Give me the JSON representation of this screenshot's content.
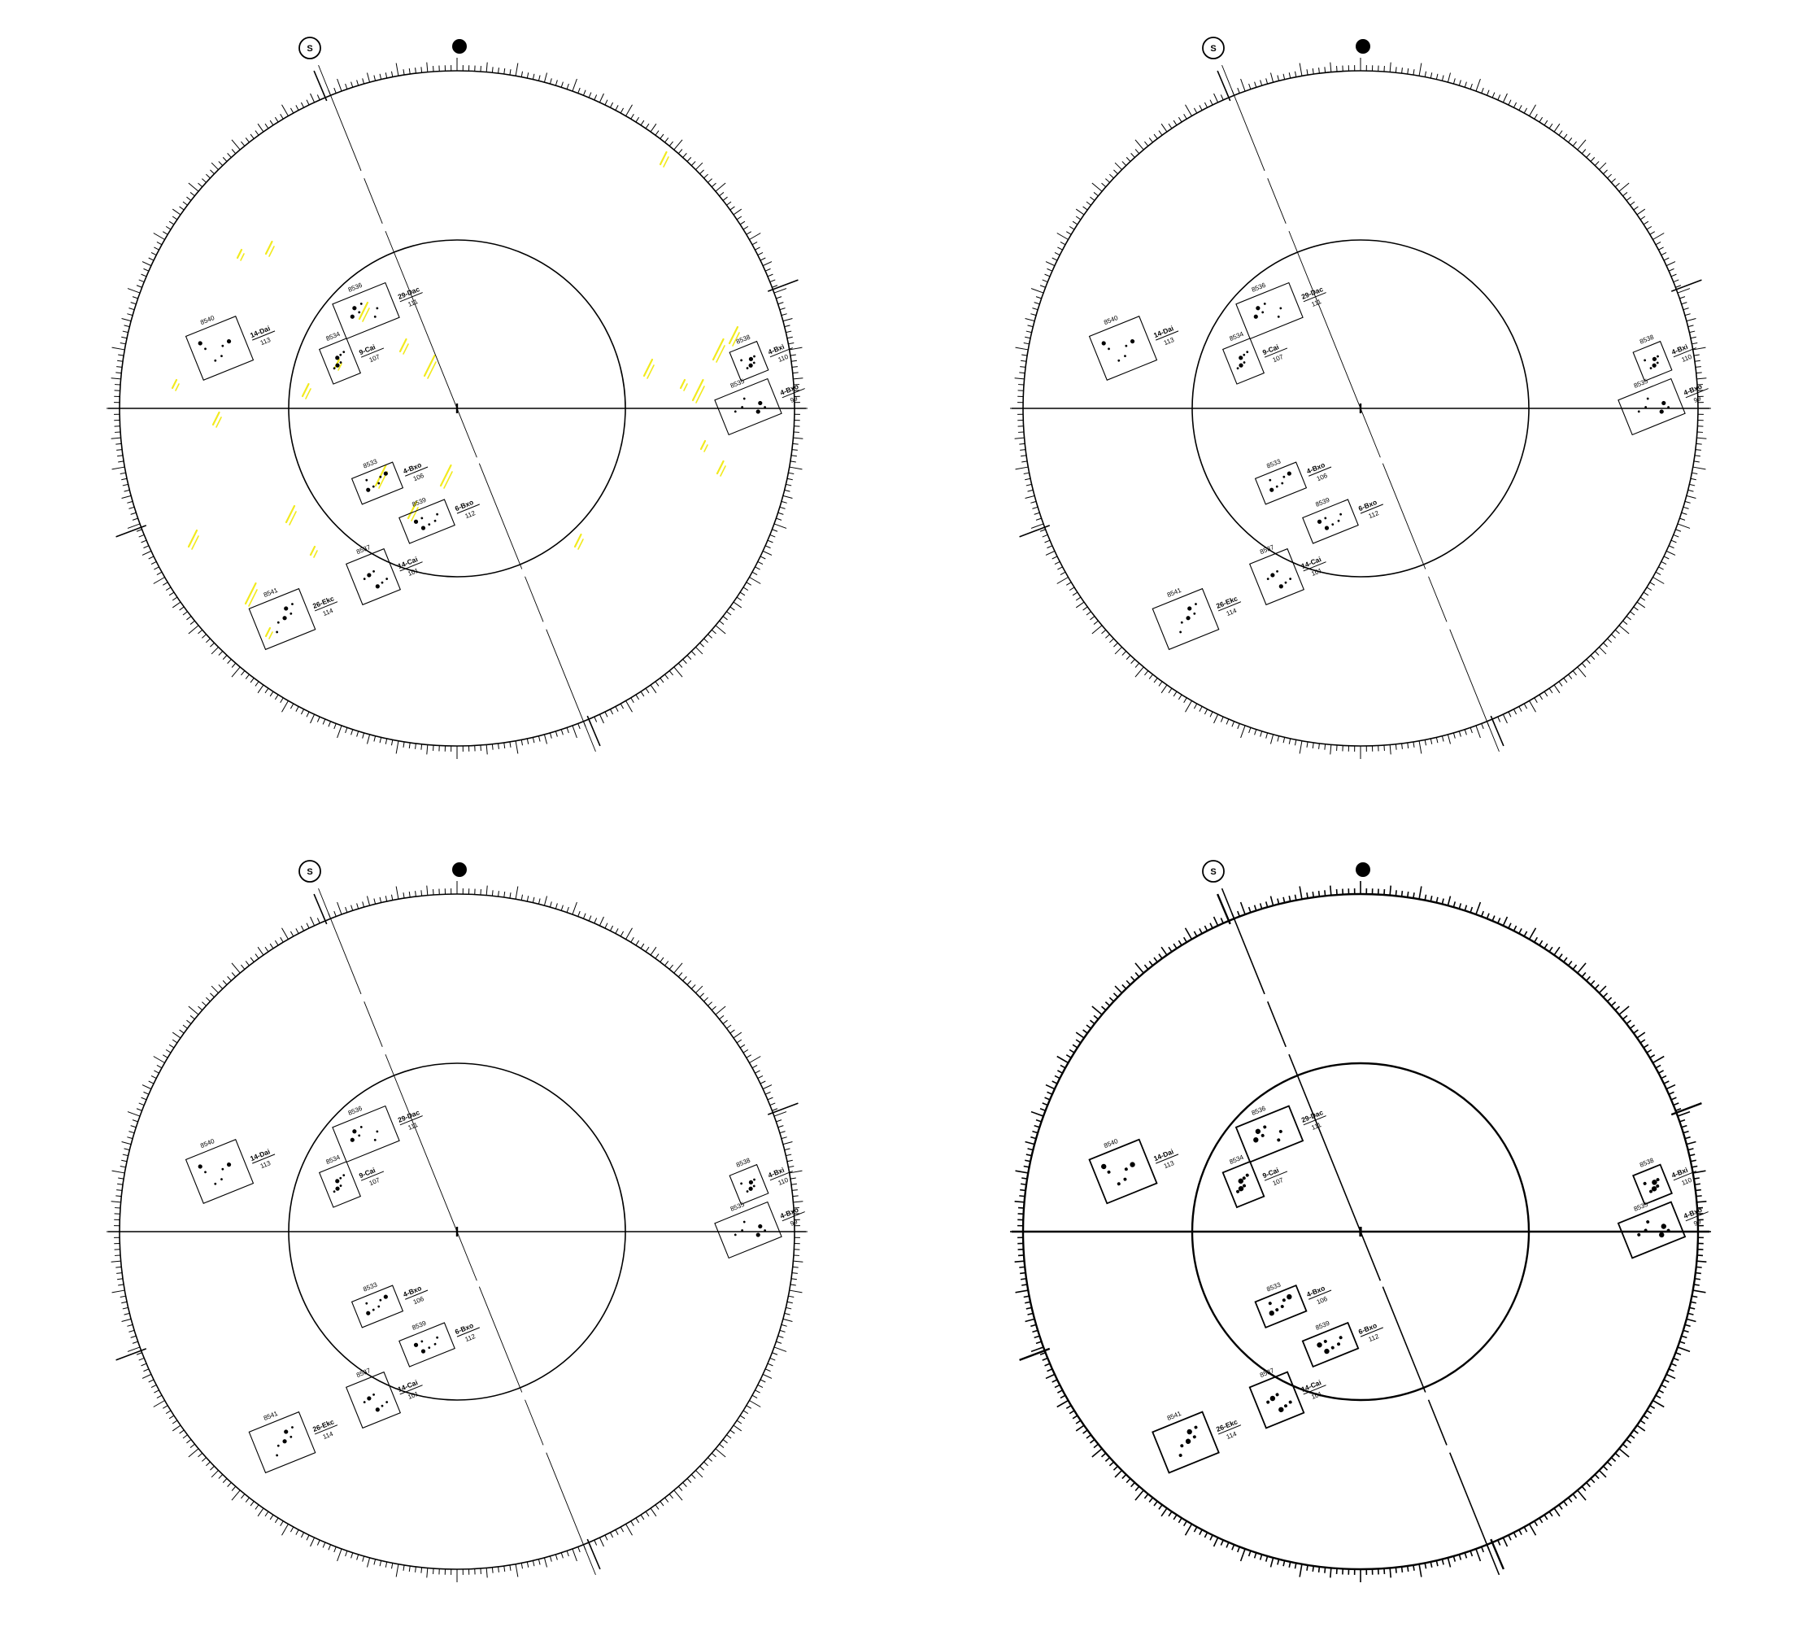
{
  "panels": [
    {
      "variant": "yellow"
    },
    {
      "variant": "plain"
    },
    {
      "variant": "plain"
    },
    {
      "variant": "bold"
    }
  ],
  "legend": {
    "s_marker": "S"
  },
  "groups": [
    {
      "id": "8540",
      "region": "14-Dai",
      "area": "113"
    },
    {
      "id": "8536",
      "region": "29-Dac",
      "area": "111"
    },
    {
      "id": "8534",
      "region": "9-Cai",
      "area": "107"
    },
    {
      "id": "8538",
      "region": "4-Bxi",
      "area": "110"
    },
    {
      "id": "8535",
      "region": "4-Bxo",
      "area": "99"
    },
    {
      "id": "8533",
      "region": "4-Bxo",
      "area": "106"
    },
    {
      "id": "8539",
      "region": "6-Bxo",
      "area": "112"
    },
    {
      "id": "8537",
      "region": "14-Cai",
      "area": "101"
    },
    {
      "id": "8541",
      "region": "26-Ekc",
      "area": "114"
    }
  ],
  "colors": {
    "ink": "#000000",
    "highlight": "#f2ea1e",
    "paper": "#ffffff"
  }
}
